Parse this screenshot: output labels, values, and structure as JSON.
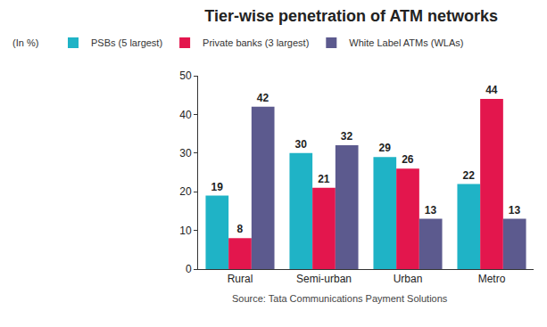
{
  "chart_data": {
    "type": "bar",
    "title": "Tier-wise penetration of ATM networks",
    "subtitle": "(In %)",
    "source": "Source: Tata Communications Payment Solutions",
    "categories": [
      "Rural",
      "Semi-urban",
      "Urban",
      "Metro"
    ],
    "series": [
      {
        "name": "PSBs (5 largest)",
        "color": "#1fb3c6",
        "values": [
          19,
          30,
          29,
          22
        ]
      },
      {
        "name": "Private banks (3 largest)",
        "color": "#e3164d",
        "values": [
          8,
          21,
          26,
          44
        ]
      },
      {
        "name": "White Label ATMs (WLAs)",
        "color": "#5c5a8e",
        "values": [
          42,
          32,
          13,
          13
        ]
      }
    ],
    "ylim": [
      0,
      50
    ],
    "yticks": [
      0,
      10,
      20,
      30,
      40,
      50
    ],
    "grid": false,
    "legend": "top",
    "data_labels": true
  }
}
